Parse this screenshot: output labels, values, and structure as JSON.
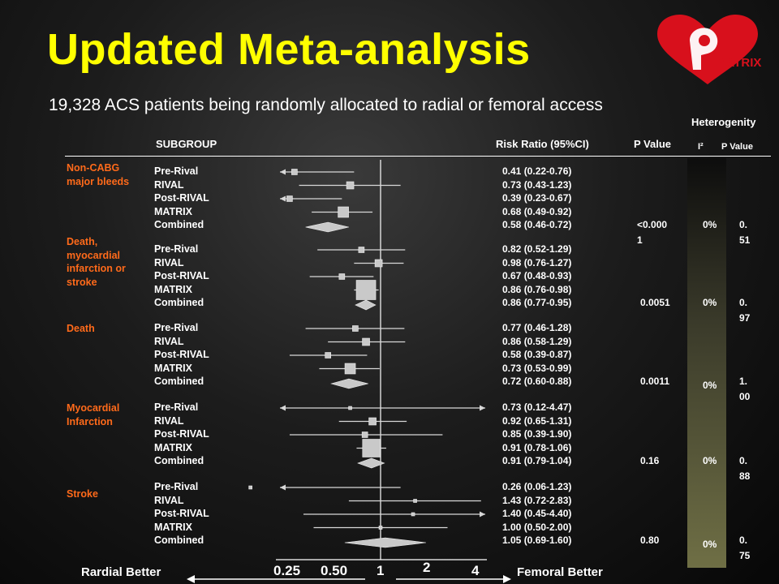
{
  "title": "Updated Meta-analysis",
  "subtitle": "19,328 ACS patients being randomly allocated to radial or femoral access",
  "logo_text": "MATRIX",
  "headers": {
    "heterogenity": "Heterogenity",
    "subgroup": "SUBGROUP",
    "risk_ratio": "Risk Ratio (95%CI)",
    "p_value": "P Value",
    "i2": "I²",
    "het_p_value": "P Value"
  },
  "footer": {
    "left": "Rardial Better",
    "right": "Femoral Better",
    "ticks": [
      "0.25",
      "0.50",
      "1",
      "2",
      "4"
    ]
  },
  "chart_data": {
    "type": "forest",
    "x_scale": "log",
    "xlim": [
      0.25,
      4
    ],
    "reference_line": 1,
    "groups": [
      {
        "label": "Non-CABG major bleeds",
        "studies": [
          {
            "name": "Pre-Rival",
            "rr": 0.41,
            "lo": 0.22,
            "hi": 0.76,
            "text": "0.41 (0.22-0.76)"
          },
          {
            "name": "RIVAL",
            "rr": 0.73,
            "lo": 0.43,
            "hi": 1.23,
            "text": "0.73 (0.43-1.23)"
          },
          {
            "name": "Post-RIVAL",
            "rr": 0.39,
            "lo": 0.23,
            "hi": 0.67,
            "text": "0.39 (0.23-0.67)"
          },
          {
            "name": "MATRIX",
            "rr": 0.68,
            "lo": 0.49,
            "hi": 0.92,
            "text": "0.68 (0.49-0.92)"
          }
        ],
        "combined": {
          "name": "Combined",
          "rr": 0.58,
          "lo": 0.46,
          "hi": 0.72,
          "text": "0.58 (0.46-0.72)"
        },
        "p_value": "<0.0001",
        "i2": "0%",
        "het_p": "0.51"
      },
      {
        "label": "Death, myocardial infarction or stroke",
        "studies": [
          {
            "name": "Pre-Rival",
            "rr": 0.82,
            "lo": 0.52,
            "hi": 1.29,
            "text": "0.82 (0.52-1.29)"
          },
          {
            "name": "RIVAL",
            "rr": 0.98,
            "lo": 0.76,
            "hi": 1.27,
            "text": "0.98 (0.76-1.27)"
          },
          {
            "name": "Post-RIVAL",
            "rr": 0.67,
            "lo": 0.48,
            "hi": 0.93,
            "text": "0.67 (0.48-0.93)"
          },
          {
            "name": "MATRIX",
            "rr": 0.86,
            "lo": 0.76,
            "hi": 0.98,
            "text": "0.86 (0.76-0.98)"
          }
        ],
        "combined": {
          "name": "Combined",
          "rr": 0.86,
          "lo": 0.77,
          "hi": 0.95,
          "text": "0.86 (0.77-0.95)"
        },
        "p_value": "0.0051",
        "i2": "0%",
        "het_p": "0.97"
      },
      {
        "label": "Death",
        "studies": [
          {
            "name": "Pre-Rival",
            "rr": 0.77,
            "lo": 0.46,
            "hi": 1.28,
            "text": "0.77 (0.46-1.28)"
          },
          {
            "name": "RIVAL",
            "rr": 0.86,
            "lo": 0.58,
            "hi": 1.29,
            "text": "0.86 (0.58-1.29)"
          },
          {
            "name": "Post-RIVAL",
            "rr": 0.58,
            "lo": 0.39,
            "hi": 0.87,
            "text": "0.58 (0.39-0.87)"
          },
          {
            "name": "MATRIX",
            "rr": 0.73,
            "lo": 0.53,
            "hi": 0.99,
            "text": "0.73 (0.53-0.99)"
          }
        ],
        "combined": {
          "name": "Combined",
          "rr": 0.72,
          "lo": 0.6,
          "hi": 0.88,
          "text": "0.72 (0.60-0.88)"
        },
        "p_value": "0.0011",
        "i2": "0%",
        "het_p": "1.00"
      },
      {
        "label": "Myocardial Infarction",
        "studies": [
          {
            "name": "Pre-Rival",
            "rr": 0.73,
            "lo": 0.12,
            "hi": 4.47,
            "text": "0.73 (0.12-4.47)"
          },
          {
            "name": "RIVAL",
            "rr": 0.92,
            "lo": 0.65,
            "hi": 1.31,
            "text": "0.92 (0.65-1.31)"
          },
          {
            "name": "Post-RIVAL",
            "rr": 0.85,
            "lo": 0.39,
            "hi": 1.9,
            "text": "0.85 (0.39-1.90)"
          },
          {
            "name": "MATRIX",
            "rr": 0.91,
            "lo": 0.78,
            "hi": 1.06,
            "text": "0.91 (0.78-1.06)"
          }
        ],
        "combined": {
          "name": "Combined",
          "rr": 0.91,
          "lo": 0.79,
          "hi": 1.04,
          "text": "0.91 (0.79-1.04)"
        },
        "p_value": "0.16",
        "i2": "0%",
        "het_p": "0.88"
      },
      {
        "label": "Stroke",
        "studies": [
          {
            "name": "Pre-Rival",
            "rr": 0.26,
            "lo": 0.06,
            "hi": 1.23,
            "text": "0.26 (0.06-1.23)"
          },
          {
            "name": "RIVAL",
            "rr": 1.43,
            "lo": 0.72,
            "hi": 2.83,
            "text": "1.43 (0.72-2.83)"
          },
          {
            "name": "Post-RIVAL",
            "rr": 1.4,
            "lo": 0.45,
            "hi": 4.4,
            "text": "1.40 (0.45-4.40)"
          },
          {
            "name": "MATRIX",
            "rr": 1.0,
            "lo": 0.5,
            "hi": 2.0,
            "text": "1.00 (0.50-2.00)"
          }
        ],
        "combined": {
          "name": "Combined",
          "rr": 1.05,
          "lo": 0.69,
          "hi": 1.6,
          "text": "1.05 (0.69-1.60)"
        },
        "p_value": "0.80",
        "i2": "0%",
        "het_p": "0.75"
      }
    ],
    "colors": {
      "title": "#ffff00",
      "group_label": "#ff6a1a",
      "marker": "#c9c9c9"
    }
  }
}
